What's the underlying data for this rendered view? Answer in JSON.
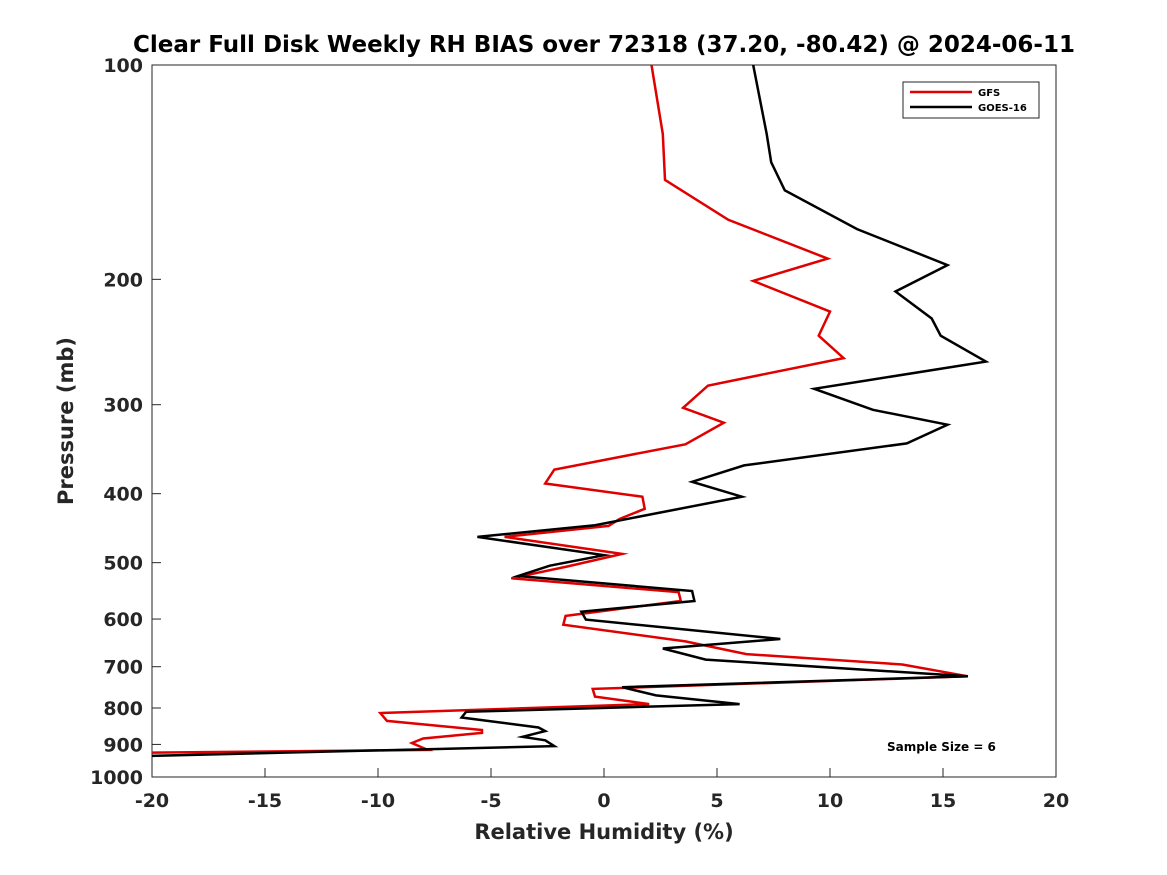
{
  "chart_data": {
    "type": "line",
    "title": "Clear Full Disk Weekly RH BIAS over 72318 (37.20, -80.42) @ 2024-06-11",
    "xlabel": "Relative Humidity (%)",
    "ylabel": "Pressure (mb)",
    "xlim": [
      -20,
      20
    ],
    "ylim": [
      100,
      1000
    ],
    "y_scale": "log",
    "y_reversed": true,
    "x_ticks": [
      -20,
      -15,
      -10,
      -5,
      0,
      5,
      10,
      15,
      20
    ],
    "x_tick_labels": [
      "-20",
      "-15",
      "-10",
      "-5",
      "0",
      "5",
      "10",
      "15",
      "20"
    ],
    "y_ticks": [
      100,
      200,
      300,
      400,
      500,
      600,
      700,
      800,
      900,
      1000
    ],
    "y_tick_labels": [
      "100",
      "200",
      "300",
      "400",
      "500",
      "600",
      "700",
      "800",
      "900",
      "1000"
    ],
    "grid": false,
    "legend_position": "top-right",
    "annotation": "Sample Size = 6",
    "series": [
      {
        "name": "GFS",
        "color": "#e00000",
        "points": [
          [
            2.1,
            100
          ],
          [
            2.6,
            125
          ],
          [
            2.7,
            145
          ],
          [
            5.5,
            165
          ],
          [
            9.9,
            187
          ],
          [
            6.6,
            201
          ],
          [
            10.0,
            222
          ],
          [
            9.5,
            240
          ],
          [
            10.6,
            258
          ],
          [
            4.6,
            282
          ],
          [
            3.5,
            303
          ],
          [
            5.3,
            318
          ],
          [
            3.6,
            341
          ],
          [
            -2.2,
            370
          ],
          [
            -2.6,
            387
          ],
          [
            1.7,
            404
          ],
          [
            1.8,
            420
          ],
          [
            0.7,
            434
          ],
          [
            0.2,
            444
          ],
          [
            -4.4,
            460
          ],
          [
            0.8,
            486
          ],
          [
            -1.6,
            506
          ],
          [
            -4.1,
            526
          ],
          [
            3.3,
            550
          ],
          [
            3.4,
            566
          ],
          [
            -1.7,
            594
          ],
          [
            -1.8,
            611
          ],
          [
            3.6,
            645
          ],
          [
            6.3,
            672
          ],
          [
            13.2,
            695
          ],
          [
            16.1,
            722
          ],
          [
            -0.5,
            752
          ],
          [
            -0.4,
            771
          ],
          [
            2.0,
            790
          ],
          [
            -9.9,
            813
          ],
          [
            -9.6,
            834
          ],
          [
            -5.4,
            859
          ],
          [
            -5.4,
            867
          ],
          [
            -8.0,
            883
          ],
          [
            -8.5,
            896
          ],
          [
            -7.8,
            916
          ],
          [
            -20.0,
            924
          ]
        ]
      },
      {
        "name": "GOES-16",
        "color": "#000000",
        "points": [
          [
            6.6,
            100
          ],
          [
            7.2,
            125
          ],
          [
            7.4,
            137
          ],
          [
            8.0,
            150
          ],
          [
            11.2,
            170
          ],
          [
            15.2,
            191
          ],
          [
            12.9,
            208
          ],
          [
            14.5,
            227
          ],
          [
            14.9,
            240
          ],
          [
            16.9,
            261
          ],
          [
            9.3,
            285
          ],
          [
            11.9,
            305
          ],
          [
            15.2,
            320
          ],
          [
            13.4,
            340
          ],
          [
            6.2,
            365
          ],
          [
            3.9,
            385
          ],
          [
            6.1,
            404
          ],
          [
            -0.4,
            443
          ],
          [
            -5.6,
            460
          ],
          [
            0.0,
            488
          ],
          [
            -2.4,
            505
          ],
          [
            -3.8,
            522
          ],
          [
            3.9,
            548
          ],
          [
            4.0,
            566
          ],
          [
            -1.0,
            586
          ],
          [
            -0.8,
            601
          ],
          [
            7.8,
            640
          ],
          [
            2.6,
            660
          ],
          [
            4.5,
            684
          ],
          [
            16.1,
            722
          ],
          [
            0.8,
            748
          ],
          [
            2.3,
            768
          ],
          [
            6.0,
            790
          ],
          [
            -6.1,
            810
          ],
          [
            -6.3,
            825
          ],
          [
            -2.9,
            852
          ],
          [
            -2.6,
            862
          ],
          [
            -3.6,
            878
          ],
          [
            -2.6,
            888
          ],
          [
            -2.2,
            905
          ],
          [
            -20.0,
            934
          ]
        ]
      }
    ]
  }
}
